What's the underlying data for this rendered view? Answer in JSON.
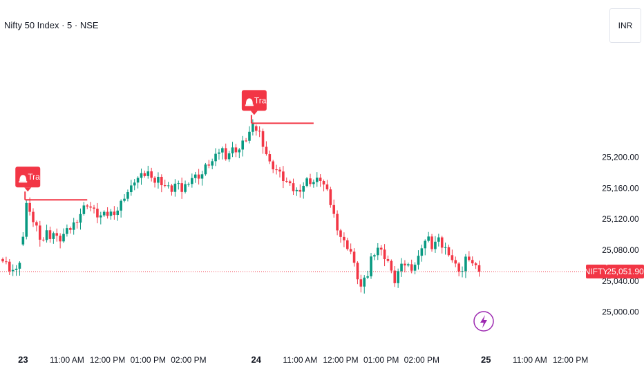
{
  "header": {
    "title": "Nifty 50 Index · 5 · NSE",
    "currency": "INR"
  },
  "chart_data": {
    "type": "candlestick",
    "symbol": "NIFTY",
    "last_price": 25051.9,
    "last_price_label": "25,051.90",
    "y_ticks": [
      {
        "value": 25200,
        "label": "25,200.00"
      },
      {
        "value": 25160,
        "label": "25,160.00"
      },
      {
        "value": 25120,
        "label": "25,120.00"
      },
      {
        "value": 25080,
        "label": "25,080.00"
      },
      {
        "value": 25040,
        "label": "25,040.00"
      },
      {
        "value": 25000,
        "label": "25,000.00"
      }
    ],
    "x_ticks": [
      {
        "label": "23",
        "bold": true,
        "bar": 6
      },
      {
        "label": "11:00 AM",
        "bold": false,
        "bar": 19
      },
      {
        "label": "12:00 PM",
        "bold": false,
        "bar": 31
      },
      {
        "label": "01:00 PM",
        "bold": false,
        "bar": 43
      },
      {
        "label": "02:00 PM",
        "bold": false,
        "bar": 55
      },
      {
        "label": "24",
        "bold": true,
        "bar": 75
      },
      {
        "label": "11:00 AM",
        "bold": false,
        "bar": 88
      },
      {
        "label": "12:00 PM",
        "bold": false,
        "bar": 100
      },
      {
        "label": "01:00 PM",
        "bold": false,
        "bar": 112
      },
      {
        "label": "02:00 PM",
        "bold": false,
        "bar": 124
      },
      {
        "label": "25",
        "bold": true,
        "bar": 143
      },
      {
        "label": "11:00 AM",
        "bold": false,
        "bar": 156
      },
      {
        "label": "12:00 PM",
        "bold": false,
        "bar": 168
      }
    ],
    "annotations": [
      {
        "label": "Trap",
        "bar": 7,
        "level": 25145
      },
      {
        "label": "Trap",
        "bar": 74,
        "level": 25244
      }
    ],
    "close_path": [
      [
        0,
        25070
      ],
      [
        1,
        25066
      ],
      [
        2,
        25050
      ],
      [
        3,
        25058
      ],
      [
        4,
        25056
      ],
      [
        5,
        25060
      ],
      [
        7,
        25140
      ],
      [
        8,
        25125
      ],
      [
        9,
        25118
      ],
      [
        10,
        25110
      ],
      [
        11,
        25098
      ],
      [
        12,
        25094
      ],
      [
        13,
        25103
      ],
      [
        14,
        25098
      ],
      [
        15,
        25102
      ],
      [
        16,
        25095
      ],
      [
        17,
        25094
      ],
      [
        18,
        25100
      ],
      [
        20,
        25108
      ],
      [
        22,
        25120
      ],
      [
        24,
        25135
      ],
      [
        25,
        25140
      ],
      [
        27,
        25130
      ],
      [
        28,
        25125
      ],
      [
        29,
        25124
      ],
      [
        31,
        25126
      ],
      [
        32,
        25128
      ],
      [
        34,
        25132
      ],
      [
        36,
        25150
      ],
      [
        38,
        25160
      ],
      [
        39,
        25170
      ],
      [
        41,
        25175
      ],
      [
        43,
        25180
      ],
      [
        44,
        25178
      ],
      [
        45,
        25168
      ],
      [
        46,
        25172
      ],
      [
        48,
        25163
      ],
      [
        49,
        25160
      ],
      [
        50,
        25158
      ],
      [
        51,
        25165
      ],
      [
        52,
        25162
      ],
      [
        53,
        25157
      ],
      [
        55,
        25170
      ],
      [
        56,
        25174
      ],
      [
        58,
        25176
      ],
      [
        59,
        25178
      ],
      [
        60,
        25187
      ],
      [
        61,
        25192
      ],
      [
        62,
        25194
      ],
      [
        63,
        25200
      ],
      [
        64,
        25208
      ],
      [
        65,
        25210
      ],
      [
        66,
        25202
      ],
      [
        68,
        25210
      ],
      [
        70,
        25210
      ],
      [
        71,
        25218
      ],
      [
        72,
        25224
      ],
      [
        73,
        25232
      ],
      [
        74,
        25240
      ],
      [
        76,
        25232
      ],
      [
        77,
        25218
      ],
      [
        78,
        25205
      ],
      [
        79,
        25192
      ],
      [
        80,
        25188
      ],
      [
        81,
        25184
      ],
      [
        82,
        25178
      ],
      [
        83,
        25172
      ],
      [
        84,
        25168
      ],
      [
        85,
        25162
      ],
      [
        86,
        25158
      ],
      [
        87,
        25156
      ],
      [
        88,
        25160
      ],
      [
        89,
        25164
      ],
      [
        90,
        25170
      ],
      [
        92,
        25168
      ],
      [
        94,
        25172
      ],
      [
        95,
        25164
      ],
      [
        96,
        25154
      ],
      [
        97,
        25140
      ],
      [
        98,
        25125
      ],
      [
        99,
        25110
      ],
      [
        100,
        25098
      ],
      [
        101,
        25090
      ],
      [
        102,
        25085
      ],
      [
        103,
        25078
      ],
      [
        104,
        25060
      ],
      [
        105,
        25045
      ],
      [
        106,
        25032
      ],
      [
        107,
        25040
      ],
      [
        108,
        25048
      ],
      [
        109,
        25070
      ],
      [
        110,
        25078
      ],
      [
        111,
        25084
      ],
      [
        112,
        25078
      ],
      [
        113,
        25072
      ],
      [
        114,
        25066
      ],
      [
        115,
        25050
      ],
      [
        116,
        25040
      ],
      [
        117,
        25052
      ],
      [
        118,
        25058
      ],
      [
        119,
        25062
      ],
      [
        120,
        25060
      ],
      [
        121,
        25058
      ],
      [
        122,
        25062
      ],
      [
        123,
        25070
      ],
      [
        124,
        25086
      ],
      [
        125,
        25092
      ],
      [
        126,
        25094
      ],
      [
        127,
        25084
      ],
      [
        128,
        25090
      ],
      [
        129,
        25092
      ],
      [
        130,
        25085
      ],
      [
        131,
        25082
      ],
      [
        132,
        25078
      ],
      [
        133,
        25068
      ],
      [
        134,
        25060
      ],
      [
        135,
        25056
      ],
      [
        136,
        25053
      ],
      [
        137,
        25068
      ],
      [
        138,
        25070
      ],
      [
        139,
        25062
      ],
      [
        140,
        25056
      ],
      [
        141,
        25051.9
      ]
    ]
  },
  "footer": {
    "icon": "lightning-icon"
  },
  "colors": {
    "up": "#089981",
    "down": "#f23645",
    "text": "#131722",
    "grid": "#f0f3fa",
    "lightning": "#9c27b0"
  }
}
